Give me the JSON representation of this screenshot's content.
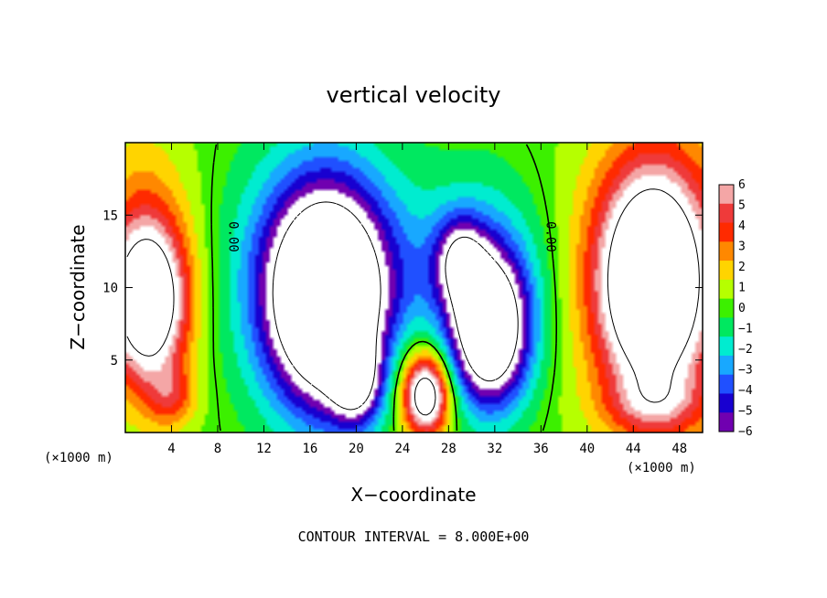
{
  "chart_data": {
    "type": "heatmap",
    "title": "vertical velocity",
    "xlabel": "X−coordinate",
    "ylabel": "Z−coordinate",
    "x_unit": "(×1000 m)",
    "xlim": [
      0,
      50
    ],
    "ylim": [
      0,
      20
    ],
    "x_ticks": [
      4,
      8,
      12,
      16,
      20,
      24,
      28,
      32,
      36,
      40,
      44,
      48
    ],
    "y_ticks": [
      5,
      10,
      15
    ],
    "x_tick_labels": [
      "4",
      "8",
      "12",
      "16",
      "20",
      "24",
      "28",
      "32",
      "36",
      "40",
      "44",
      "48"
    ],
    "y_tick_labels": [
      "5",
      "10",
      "15"
    ],
    "colorbar": {
      "levels": [
        6,
        5,
        4,
        3,
        2,
        1,
        0,
        -1,
        -2,
        -3,
        -4,
        -5,
        -6
      ],
      "labels": [
        "6",
        "5",
        "4",
        "3",
        "2",
        "1",
        "0",
        "−1",
        "−2",
        "−3",
        "−4",
        "−5",
        "−6"
      ],
      "colors": [
        "#f4a6a6",
        "#ef3a3a",
        "#ff2a00",
        "#ff8800",
        "#ffd400",
        "#b6ff00",
        "#3cf000",
        "#00e860",
        "#00ecd0",
        "#18a8ff",
        "#2050ff",
        "#1800d0",
        "#7000b0"
      ]
    },
    "contour_labels": [
      {
        "x": 9.0,
        "z": 13.5,
        "text": "0.00"
      },
      {
        "x": 36.5,
        "z": 13.5,
        "text": "0.00"
      }
    ],
    "contour_interval_text": "CONTOUR INTERVAL = 8.000E+00",
    "features": [
      {
        "x": 2.0,
        "z": 9.0,
        "value": 9,
        "sx": 2.2,
        "sz": 3.5
      },
      {
        "x": 1.5,
        "z": 11.0,
        "value": 4,
        "sx": 3.0,
        "sz": 6.0
      },
      {
        "x": 4.0,
        "z": 2.5,
        "value": 3,
        "sx": 1.5,
        "sz": 1.5
      },
      {
        "x": 17.5,
        "z": 9.0,
        "value": -12,
        "sx": 3.5,
        "sz": 5.0
      },
      {
        "x": 17.0,
        "z": 11.0,
        "value": -5,
        "sx": 5.0,
        "sz": 6.0
      },
      {
        "x": 20.0,
        "z": 3.5,
        "value": -6,
        "sx": 1.5,
        "sz": 2.0
      },
      {
        "x": 26.0,
        "z": 2.5,
        "value": 9,
        "sx": 1.3,
        "sz": 1.8
      },
      {
        "x": 26.0,
        "z": 4.0,
        "value": 3,
        "sx": 2.5,
        "sz": 3.0
      },
      {
        "x": 31.5,
        "z": 7.0,
        "value": -11,
        "sx": 2.3,
        "sz": 3.5
      },
      {
        "x": 29.0,
        "z": 12.0,
        "value": -5,
        "sx": 1.5,
        "sz": 2.0
      },
      {
        "x": 30.5,
        "z": 10.0,
        "value": -4,
        "sx": 4.0,
        "sz": 5.0
      },
      {
        "x": 45.5,
        "z": 10.5,
        "value": 10,
        "sx": 3.0,
        "sz": 5.0
      },
      {
        "x": 46.5,
        "z": 10.5,
        "value": 5,
        "sx": 5.0,
        "sz": 7.0
      },
      {
        "x": 46.0,
        "z": 2.0,
        "value": 3,
        "sx": 3.0,
        "sz": 1.5
      }
    ]
  }
}
